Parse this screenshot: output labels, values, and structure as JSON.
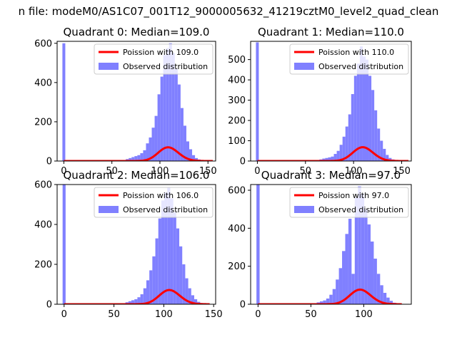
{
  "figure": {
    "suptitle": "n file: modeM0/AS1C07_001T12_9000005632_41219cztM0_level2_quad_clean"
  },
  "colors": {
    "hist": "#8080ff",
    "fit": "#ff0000",
    "axis": "#000000",
    "background": "#ffffff"
  },
  "chart_data": [
    {
      "type": "bar",
      "title": "Quadrant 0: Median=109.0",
      "xlim": [
        -7,
        158
      ],
      "ylim": [
        0,
        610
      ],
      "xticks": [
        0,
        50,
        100,
        150
      ],
      "yticks": [
        0,
        200,
        400,
        600
      ],
      "bin_width": 3,
      "legend": {
        "placement": "upper right",
        "entries": [
          "Poission with 109.0",
          "Observed distribution"
        ]
      },
      "series": [
        {
          "name": "Observed distribution",
          "type": "histogram",
          "x": [
            0,
            63,
            66,
            69,
            72,
            75,
            78,
            81,
            84,
            87,
            90,
            93,
            96,
            99,
            102,
            105,
            108,
            111,
            114,
            117,
            120,
            123,
            126,
            129,
            132,
            135,
            138,
            141,
            144
          ],
          "values": [
            600,
            5,
            10,
            15,
            20,
            25,
            30,
            40,
            55,
            90,
            120,
            170,
            230,
            340,
            430,
            540,
            575,
            600,
            550,
            470,
            390,
            270,
            180,
            100,
            60,
            30,
            15,
            8,
            4
          ]
        },
        {
          "name": "Poission with 109.0",
          "type": "poisson",
          "mean": 109.0,
          "scale": 1830,
          "xrange": [
            0,
            155
          ]
        }
      ]
    },
    {
      "type": "bar",
      "title": "Quadrant 1: Median=110.0",
      "xlim": [
        -7,
        160
      ],
      "ylim": [
        0,
        590
      ],
      "xticks": [
        0,
        50,
        100,
        150
      ],
      "yticks": [
        0,
        100,
        200,
        300,
        400,
        500
      ],
      "bin_width": 3,
      "legend": {
        "placement": "upper right",
        "entries": [
          "Poission with 110.0",
          "Observed distribution"
        ]
      },
      "series": [
        {
          "name": "Observed distribution",
          "type": "histogram",
          "x": [
            0,
            63,
            66,
            69,
            72,
            75,
            78,
            81,
            84,
            87,
            90,
            93,
            96,
            99,
            102,
            105,
            108,
            111,
            114,
            117,
            120,
            123,
            126,
            129,
            132,
            135,
            138,
            141,
            144
          ],
          "values": [
            585,
            5,
            8,
            12,
            15,
            18,
            22,
            35,
            50,
            80,
            120,
            170,
            230,
            330,
            420,
            480,
            565,
            515,
            500,
            420,
            350,
            250,
            160,
            100,
            60,
            30,
            15,
            8,
            4
          ]
        },
        {
          "name": "Poission with 110.0",
          "type": "poisson",
          "mean": 110.0,
          "scale": 1790,
          "xrange": [
            0,
            157
          ]
        }
      ]
    },
    {
      "type": "bar",
      "title": "Quadrant 2: Median=106.0",
      "xlim": [
        -7,
        152
      ],
      "ylim": [
        0,
        600
      ],
      "xticks": [
        0,
        50,
        100,
        150
      ],
      "yticks": [
        0,
        200,
        400,
        600
      ],
      "bin_width": 3,
      "legend": {
        "placement": "upper right",
        "entries": [
          "Poission with 106.0",
          "Observed distribution"
        ]
      },
      "series": [
        {
          "name": "Observed distribution",
          "type": "histogram",
          "x": [
            0,
            60,
            63,
            66,
            69,
            72,
            75,
            78,
            81,
            84,
            87,
            90,
            93,
            96,
            99,
            102,
            105,
            108,
            111,
            114,
            117,
            120,
            123,
            126,
            129,
            132,
            135,
            138
          ],
          "values": [
            600,
            5,
            10,
            15,
            20,
            25,
            35,
            50,
            80,
            120,
            170,
            240,
            330,
            430,
            520,
            560,
            585,
            530,
            460,
            380,
            290,
            200,
            130,
            80,
            45,
            25,
            12,
            6
          ]
        },
        {
          "name": "Poission with 106.0",
          "type": "poisson",
          "mean": 106.0,
          "scale": 1840,
          "xrange": [
            0,
            146
          ]
        }
      ]
    },
    {
      "type": "bar",
      "title": "Quadrant 3: Median=97.0",
      "xlim": [
        -7,
        145
      ],
      "ylim": [
        0,
        630
      ],
      "xticks": [
        0,
        50,
        100
      ],
      "yticks": [
        0,
        200,
        400,
        600
      ],
      "bin_width": 3,
      "legend": {
        "placement": "upper right",
        "entries": [
          "Poission with 97.0",
          "Observed distribution"
        ]
      },
      "series": [
        {
          "name": "Observed distribution",
          "type": "histogram",
          "x": [
            0,
            54,
            57,
            60,
            63,
            66,
            69,
            72,
            75,
            78,
            81,
            84,
            87,
            90,
            93,
            96,
            99,
            102,
            105,
            108,
            111,
            114,
            117,
            120,
            123,
            126,
            129,
            132
          ],
          "values": [
            630,
            5,
            10,
            15,
            20,
            30,
            50,
            80,
            130,
            190,
            280,
            370,
            450,
            160,
            560,
            620,
            580,
            500,
            420,
            330,
            240,
            160,
            100,
            60,
            35,
            18,
            8,
            4
          ]
        },
        {
          "name": "Poission with 97.0",
          "type": "poisson",
          "mean": 97.0,
          "scale": 1900,
          "xrange": [
            0,
            136
          ]
        }
      ]
    }
  ]
}
